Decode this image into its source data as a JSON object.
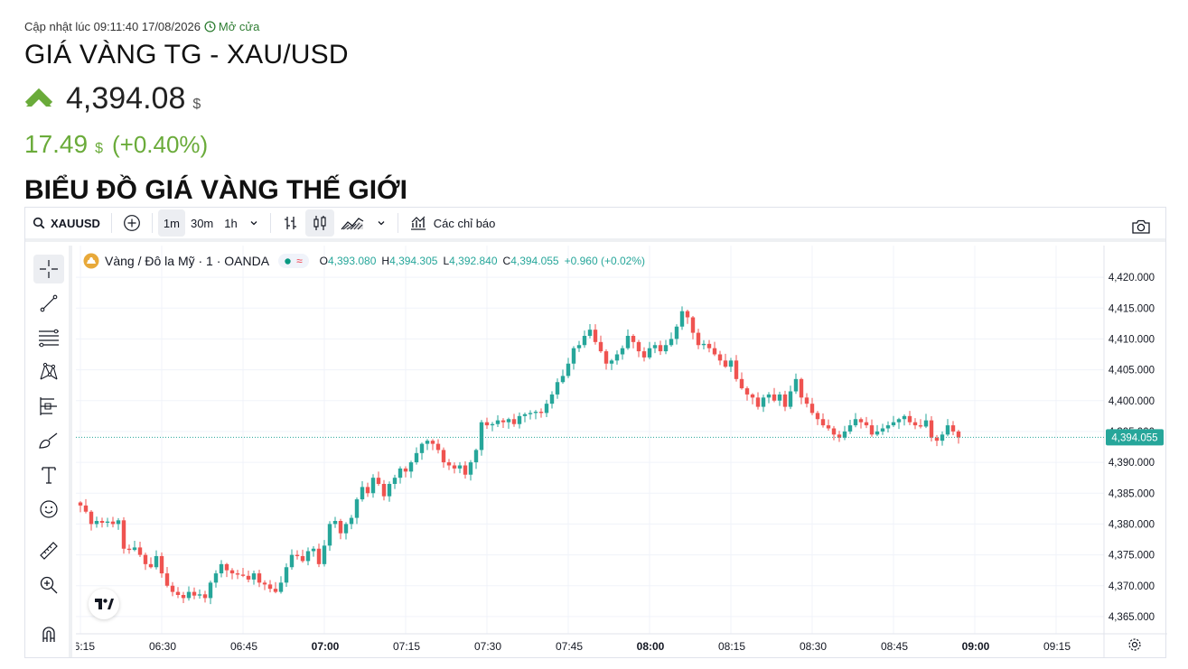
{
  "header": {
    "updated": "Cập nhật lúc 09:11:40 17/08/2026",
    "status": "Mở cửa",
    "title": "GIÁ VÀNG TG - XAU/USD",
    "price": "4,394.08",
    "price_unit": "$",
    "change": "17.49",
    "change_unit": "$",
    "change_pct": "(+0.40%)",
    "section_title": "BIỂU ĐỒ GIÁ VÀNG THẾ GIỚI",
    "direction": "up",
    "up_color": "#6aab3a"
  },
  "toolbar": {
    "symbol": "XAUUSD",
    "intervals": [
      "1m",
      "30m",
      "1h"
    ],
    "active_interval": "1m",
    "indicators_label": "Các chỉ báo",
    "icons": [
      "search-icon",
      "plus-circle-icon",
      "chevron-down-icon",
      "bar-style-icon",
      "candle-style-icon",
      "compare-icon",
      "indicators-icon",
      "camera-icon"
    ]
  },
  "sidebar": {
    "tools": [
      "crosshair-icon",
      "trend-line-icon",
      "fib-icon",
      "pattern-icon",
      "projection-icon",
      "brush-icon",
      "text-icon",
      "emoji-icon",
      "ruler-icon",
      "zoom-icon",
      "magnet-icon"
    ]
  },
  "legend": {
    "symbol_name": "Vàng / Đô la Mỹ · 1 · OANDA",
    "o_label": "O",
    "o": "4,393.080",
    "h_label": "H",
    "h": "4,394.305",
    "l_label": "L",
    "l": "4,392.840",
    "c_label": "C",
    "c": "4,394.055",
    "chg": "+0.960 (+0.02%)",
    "pill_symbol": "≈"
  },
  "chart_data": {
    "type": "candlestick",
    "up_color": "#26a69a",
    "down_color": "#ef5350",
    "ylim": [
      4362.5,
      4422.5
    ],
    "y_ticks": [
      "4,420.000",
      "4,415.000",
      "4,410.000",
      "4,405.000",
      "4,400.000",
      "4,395.000",
      "4,390.000",
      "4,385.000",
      "4,380.000",
      "4,375.000",
      "4,370.000",
      "4,365.000"
    ],
    "y_tick_values": [
      4420,
      4415,
      4410,
      4405,
      4400,
      4395,
      4390,
      4385,
      4380,
      4375,
      4370,
      4365
    ],
    "x_ticks": [
      {
        "label": "06:15",
        "minute": 0,
        "bold": false
      },
      {
        "label": "06:30",
        "minute": 15,
        "bold": false
      },
      {
        "label": "06:45",
        "minute": 30,
        "bold": false
      },
      {
        "label": "07:00",
        "minute": 45,
        "bold": true
      },
      {
        "label": "07:15",
        "minute": 60,
        "bold": false
      },
      {
        "label": "07:30",
        "minute": 75,
        "bold": false
      },
      {
        "label": "07:45",
        "minute": 90,
        "bold": false
      },
      {
        "label": "08:00",
        "minute": 105,
        "bold": true
      },
      {
        "label": "08:15",
        "minute": 120,
        "bold": false
      },
      {
        "label": "08:30",
        "minute": 135,
        "bold": false
      },
      {
        "label": "08:45",
        "minute": 150,
        "bold": false
      },
      {
        "label": "09:00",
        "minute": 165,
        "bold": true
      },
      {
        "label": "09:15",
        "minute": 180,
        "bold": false
      }
    ],
    "first_minute_offset": -0.5,
    "last_price": 4394.055,
    "last_price_label": "4,394.055",
    "closes": [
      4383,
      4382,
      4380,
      4380.5,
      4380.2,
      4380.4,
      4380,
      4380.6,
      4376,
      4375.8,
      4376.2,
      4375,
      4373.5,
      4373,
      4374.8,
      4372,
      4370,
      4369,
      4368.5,
      4368,
      4369,
      4368.4,
      4368.6,
      4368,
      4370.5,
      4372,
      4373.5,
      4372.5,
      4372,
      4371.8,
      4371.6,
      4371,
      4372,
      4370.5,
      4370.2,
      4369.5,
      4369,
      4370.5,
      4373,
      4375,
      4374.8,
      4374,
      4375.6,
      4376,
      4373.5,
      4376.5,
      4380,
      4380.5,
      4378.5,
      4380,
      4381,
      4384,
      4386,
      4385,
      4387.5,
      4386.5,
      4384.5,
      4386.5,
      4387.5,
      4389,
      4388.5,
      4390,
      4391.5,
      4393,
      4393.5,
      4393,
      4392,
      4390,
      4389.5,
      4389,
      4389.5,
      4388,
      4390,
      4392,
      4396.5,
      4396,
      4396.2,
      4396.8,
      4396.5,
      4397,
      4396.2,
      4397.5,
      4397.8,
      4398,
      4398.2,
      4398,
      4399.5,
      4401,
      4403,
      4404,
      4406,
      4408.5,
      4409,
      4410.5,
      4411.5,
      4409.5,
      4408,
      4406,
      4406.5,
      4407.5,
      4408.5,
      4410.5,
      4409.5,
      4408,
      4407,
      4408.5,
      4409,
      4408,
      4409,
      4410,
      4412,
      4414.5,
      4413.5,
      4411,
      4409,
      4409.2,
      4408.5,
      4407.5,
      4406.5,
      4405.5,
      4406.5,
      4403.5,
      4402,
      4401,
      4400.5,
      4399,
      4400.5,
      4401,
      4400,
      4401,
      4399,
      4401.5,
      4403.5,
      4400.5,
      4399.5,
      4398,
      4397,
      4396,
      4395.5,
      4394.5,
      4394,
      4395,
      4396,
      4397,
      4396.5,
      4396,
      4394.5,
      4395,
      4395.5,
      4396,
      4396.5,
      4397,
      4397.5,
      4396.5,
      4396,
      4395.8,
      4396.8,
      4394,
      4393.5,
      4394.5,
      4396,
      4395,
      4394.055
    ],
    "open_first": 4383.5
  }
}
